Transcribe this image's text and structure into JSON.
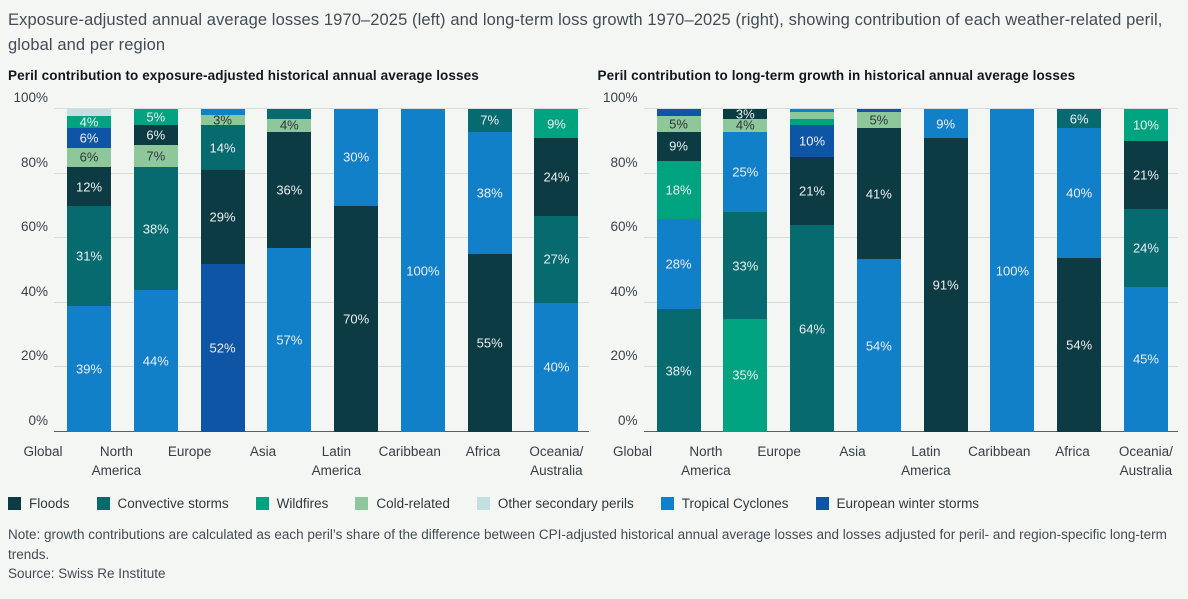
{
  "header": {
    "caption": "Exposure-adjusted annual average losses 1970–2025 (left) and long-term loss growth 1970–2025 (right), showing contribution of each weather-related peril, global and per region"
  },
  "perils": {
    "floods": {
      "label": "Floods",
      "color": "#0d3b43"
    },
    "convective": {
      "label": "Convective storms",
      "color": "#066a6f"
    },
    "wildfires": {
      "label": "Wildfires",
      "color": "#00a37f"
    },
    "cold": {
      "label": "Cold-related",
      "color": "#8ec79a"
    },
    "other": {
      "label": "Other secondary perils",
      "color": "#c3dfe1"
    },
    "tropical": {
      "label": "Tropical Cyclones",
      "color": "#1180c8"
    },
    "winter": {
      "label": "European winter storms",
      "color": "#0f55a6"
    }
  },
  "legend_order": [
    "floods",
    "convective",
    "wildfires",
    "cold",
    "other",
    "tropical",
    "winter"
  ],
  "chart_data": [
    {
      "type": "bar",
      "stacked": true,
      "title": "Peril contribution to exposure-adjusted historical annual average losses",
      "ylabel": "",
      "ylim": [
        0,
        100
      ],
      "grid": true,
      "yticks": [
        "0%",
        "20%",
        "40%",
        "60%",
        "80%",
        "100%"
      ],
      "categories": [
        "Global",
        "North\nAmerica",
        "Europe",
        "Asia",
        "Latin\nAmerica",
        "Caribbean",
        "Africa",
        "Oceania/\nAustralia"
      ],
      "bars": [
        {
          "category": "Global",
          "segments": [
            {
              "peril": "tropical",
              "value": 39,
              "label": "39%"
            },
            {
              "peril": "convective",
              "value": 31,
              "label": "31%"
            },
            {
              "peril": "floods",
              "value": 12,
              "label": "12%"
            },
            {
              "peril": "cold",
              "value": 6,
              "label": "6%"
            },
            {
              "peril": "winter",
              "value": 6,
              "label": "6%"
            },
            {
              "peril": "wildfires",
              "value": 4,
              "label": "4%"
            },
            {
              "peril": "other",
              "value": 2,
              "label": ""
            }
          ]
        },
        {
          "category": "North\nAmerica",
          "segments": [
            {
              "peril": "tropical",
              "value": 44,
              "label": "44%"
            },
            {
              "peril": "convective",
              "value": 38,
              "label": "38%"
            },
            {
              "peril": "cold",
              "value": 7,
              "label": "7%"
            },
            {
              "peril": "floods",
              "value": 6,
              "label": "6%"
            },
            {
              "peril": "wildfires",
              "value": 5,
              "label": "5%"
            }
          ]
        },
        {
          "category": "Europe",
          "segments": [
            {
              "peril": "winter",
              "value": 52,
              "label": "52%"
            },
            {
              "peril": "floods",
              "value": 29,
              "label": "29%"
            },
            {
              "peril": "convective",
              "value": 14,
              "label": "14%"
            },
            {
              "peril": "cold",
              "value": 3,
              "label": "3%"
            },
            {
              "peril": "tropical",
              "value": 2,
              "label": ""
            }
          ]
        },
        {
          "category": "Asia",
          "segments": [
            {
              "peril": "tropical",
              "value": 57,
              "label": "57%"
            },
            {
              "peril": "floods",
              "value": 36,
              "label": "36%"
            },
            {
              "peril": "cold",
              "value": 4,
              "label": "4%"
            },
            {
              "peril": "convective",
              "value": 3,
              "label": ""
            }
          ]
        },
        {
          "category": "Latin\nAmerica",
          "segments": [
            {
              "peril": "floods",
              "value": 70,
              "label": "70%"
            },
            {
              "peril": "tropical",
              "value": 30,
              "label": "30%"
            }
          ]
        },
        {
          "category": "Caribbean",
          "segments": [
            {
              "peril": "tropical",
              "value": 100,
              "label": "100%"
            }
          ]
        },
        {
          "category": "Africa",
          "segments": [
            {
              "peril": "floods",
              "value": 55,
              "label": "55%"
            },
            {
              "peril": "tropical",
              "value": 38,
              "label": "38%"
            },
            {
              "peril": "convective",
              "value": 7,
              "label": "7%"
            }
          ]
        },
        {
          "category": "Oceania/\nAustralia",
          "segments": [
            {
              "peril": "tropical",
              "value": 40,
              "label": "40%"
            },
            {
              "peril": "convective",
              "value": 27,
              "label": "27%"
            },
            {
              "peril": "floods",
              "value": 24,
              "label": "24%"
            },
            {
              "peril": "wildfires",
              "value": 9,
              "label": "9%"
            }
          ]
        }
      ]
    },
    {
      "type": "bar",
      "stacked": true,
      "title": "Peril contribution to long-term growth in historical annual average losses",
      "ylabel": "",
      "ylim": [
        0,
        100
      ],
      "grid": true,
      "yticks": [
        "0%",
        "20%",
        "40%",
        "60%",
        "80%",
        "100%"
      ],
      "categories": [
        "Global",
        "North\nAmerica",
        "Europe",
        "Asia",
        "Latin\nAmerica",
        "Caribbean",
        "Africa",
        "Oceania/\nAustralia"
      ],
      "bars": [
        {
          "category": "Global",
          "segments": [
            {
              "peril": "convective",
              "value": 38,
              "label": "38%"
            },
            {
              "peril": "tropical",
              "value": 28,
              "label": "28%"
            },
            {
              "peril": "wildfires",
              "value": 18,
              "label": "18%"
            },
            {
              "peril": "floods",
              "value": 9,
              "label": "9%"
            },
            {
              "peril": "cold",
              "value": 5,
              "label": "5%"
            },
            {
              "peril": "winter",
              "value": 2,
              "label": ""
            }
          ]
        },
        {
          "category": "North\nAmerica",
          "segments": [
            {
              "peril": "wildfires",
              "value": 35,
              "label": "35%"
            },
            {
              "peril": "convective",
              "value": 33,
              "label": "33%"
            },
            {
              "peril": "tropical",
              "value": 25,
              "label": "25%"
            },
            {
              "peril": "cold",
              "value": 4,
              "label": "4%"
            },
            {
              "peril": "floods",
              "value": 3,
              "label": "3%"
            }
          ]
        },
        {
          "category": "Europe",
          "segments": [
            {
              "peril": "convective",
              "value": 64,
              "label": "64%"
            },
            {
              "peril": "floods",
              "value": 21,
              "label": "21%"
            },
            {
              "peril": "winter",
              "value": 10,
              "label": "10%"
            },
            {
              "peril": "wildfires",
              "value": 2,
              "label": ""
            },
            {
              "peril": "cold",
              "value": 2,
              "label": ""
            },
            {
              "peril": "tropical",
              "value": 1,
              "label": ""
            }
          ]
        },
        {
          "category": "Asia",
          "segments": [
            {
              "peril": "tropical",
              "value": 54,
              "label": "54%"
            },
            {
              "peril": "floods",
              "value": 41,
              "label": "41%"
            },
            {
              "peril": "cold",
              "value": 5,
              "label": "5%"
            },
            {
              "peril": "winter",
              "value": 1,
              "label": ""
            }
          ]
        },
        {
          "category": "Latin\nAmerica",
          "segments": [
            {
              "peril": "floods",
              "value": 91,
              "label": "91%"
            },
            {
              "peril": "tropical",
              "value": 9,
              "label": "9%"
            }
          ]
        },
        {
          "category": "Caribbean",
          "segments": [
            {
              "peril": "tropical",
              "value": 100,
              "label": "100%"
            }
          ]
        },
        {
          "category": "Africa",
          "segments": [
            {
              "peril": "floods",
              "value": 54,
              "label": "54%"
            },
            {
              "peril": "tropical",
              "value": 40,
              "label": "40%"
            },
            {
              "peril": "convective",
              "value": 6,
              "label": "6%"
            }
          ]
        },
        {
          "category": "Oceania/\nAustralia",
          "segments": [
            {
              "peril": "tropical",
              "value": 45,
              "label": "45%"
            },
            {
              "peril": "convective",
              "value": 24,
              "label": "24%"
            },
            {
              "peril": "floods",
              "value": 21,
              "label": "21%"
            },
            {
              "peril": "wildfires",
              "value": 10,
              "label": "10%"
            }
          ]
        }
      ]
    }
  ],
  "footer": {
    "note": "Note: growth contributions are calculated as each peril’s share of the difference between CPI-adjusted historical annual average losses and losses adjusted for peril- and region-specific long-term trends.",
    "source": "Source: Swiss Re Institute"
  }
}
